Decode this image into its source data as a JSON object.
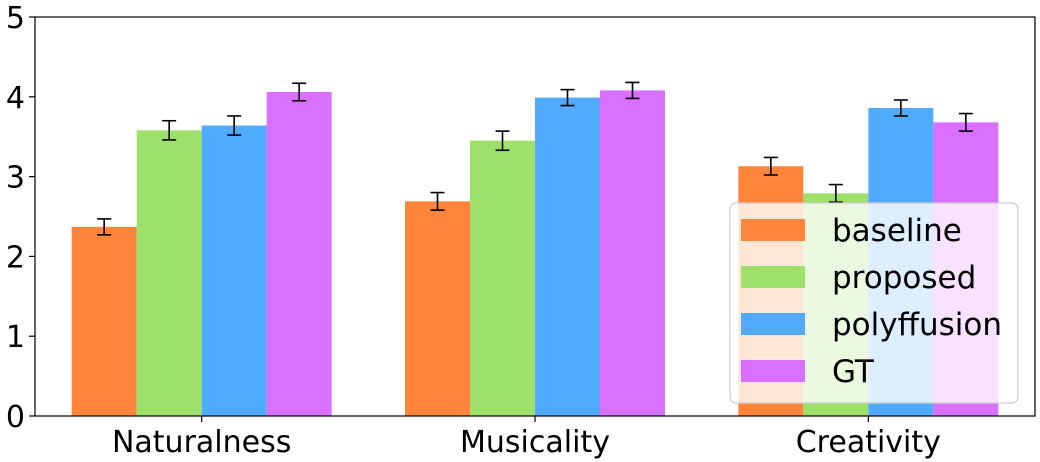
{
  "chart_data": {
    "type": "bar",
    "title": "",
    "xlabel": "",
    "ylabel": "",
    "categories": [
      "Naturalness",
      "Musicality",
      "Creativity"
    ],
    "ylim": [
      0,
      5
    ],
    "yticks": [
      "0",
      "1",
      "2",
      "3",
      "4",
      "5"
    ],
    "grid": false,
    "legend_position": "bottom-right",
    "series": [
      {
        "name": "baseline",
        "color": "#ff853b",
        "values": [
          2.37,
          2.69,
          3.13
        ],
        "errors": [
          0.1,
          0.11,
          0.11
        ]
      },
      {
        "name": "proposed",
        "color": "#9de06a",
        "values": [
          3.58,
          3.45,
          2.79
        ],
        "errors": [
          0.12,
          0.12,
          0.11
        ]
      },
      {
        "name": "polyffusion",
        "color": "#50abff",
        "values": [
          3.64,
          3.99,
          3.86
        ],
        "errors": [
          0.12,
          0.1,
          0.1
        ]
      },
      {
        "name": "GT",
        "color": "#da70ff",
        "values": [
          4.06,
          4.08,
          3.68
        ],
        "errors": [
          0.11,
          0.1,
          0.11
        ]
      }
    ]
  }
}
